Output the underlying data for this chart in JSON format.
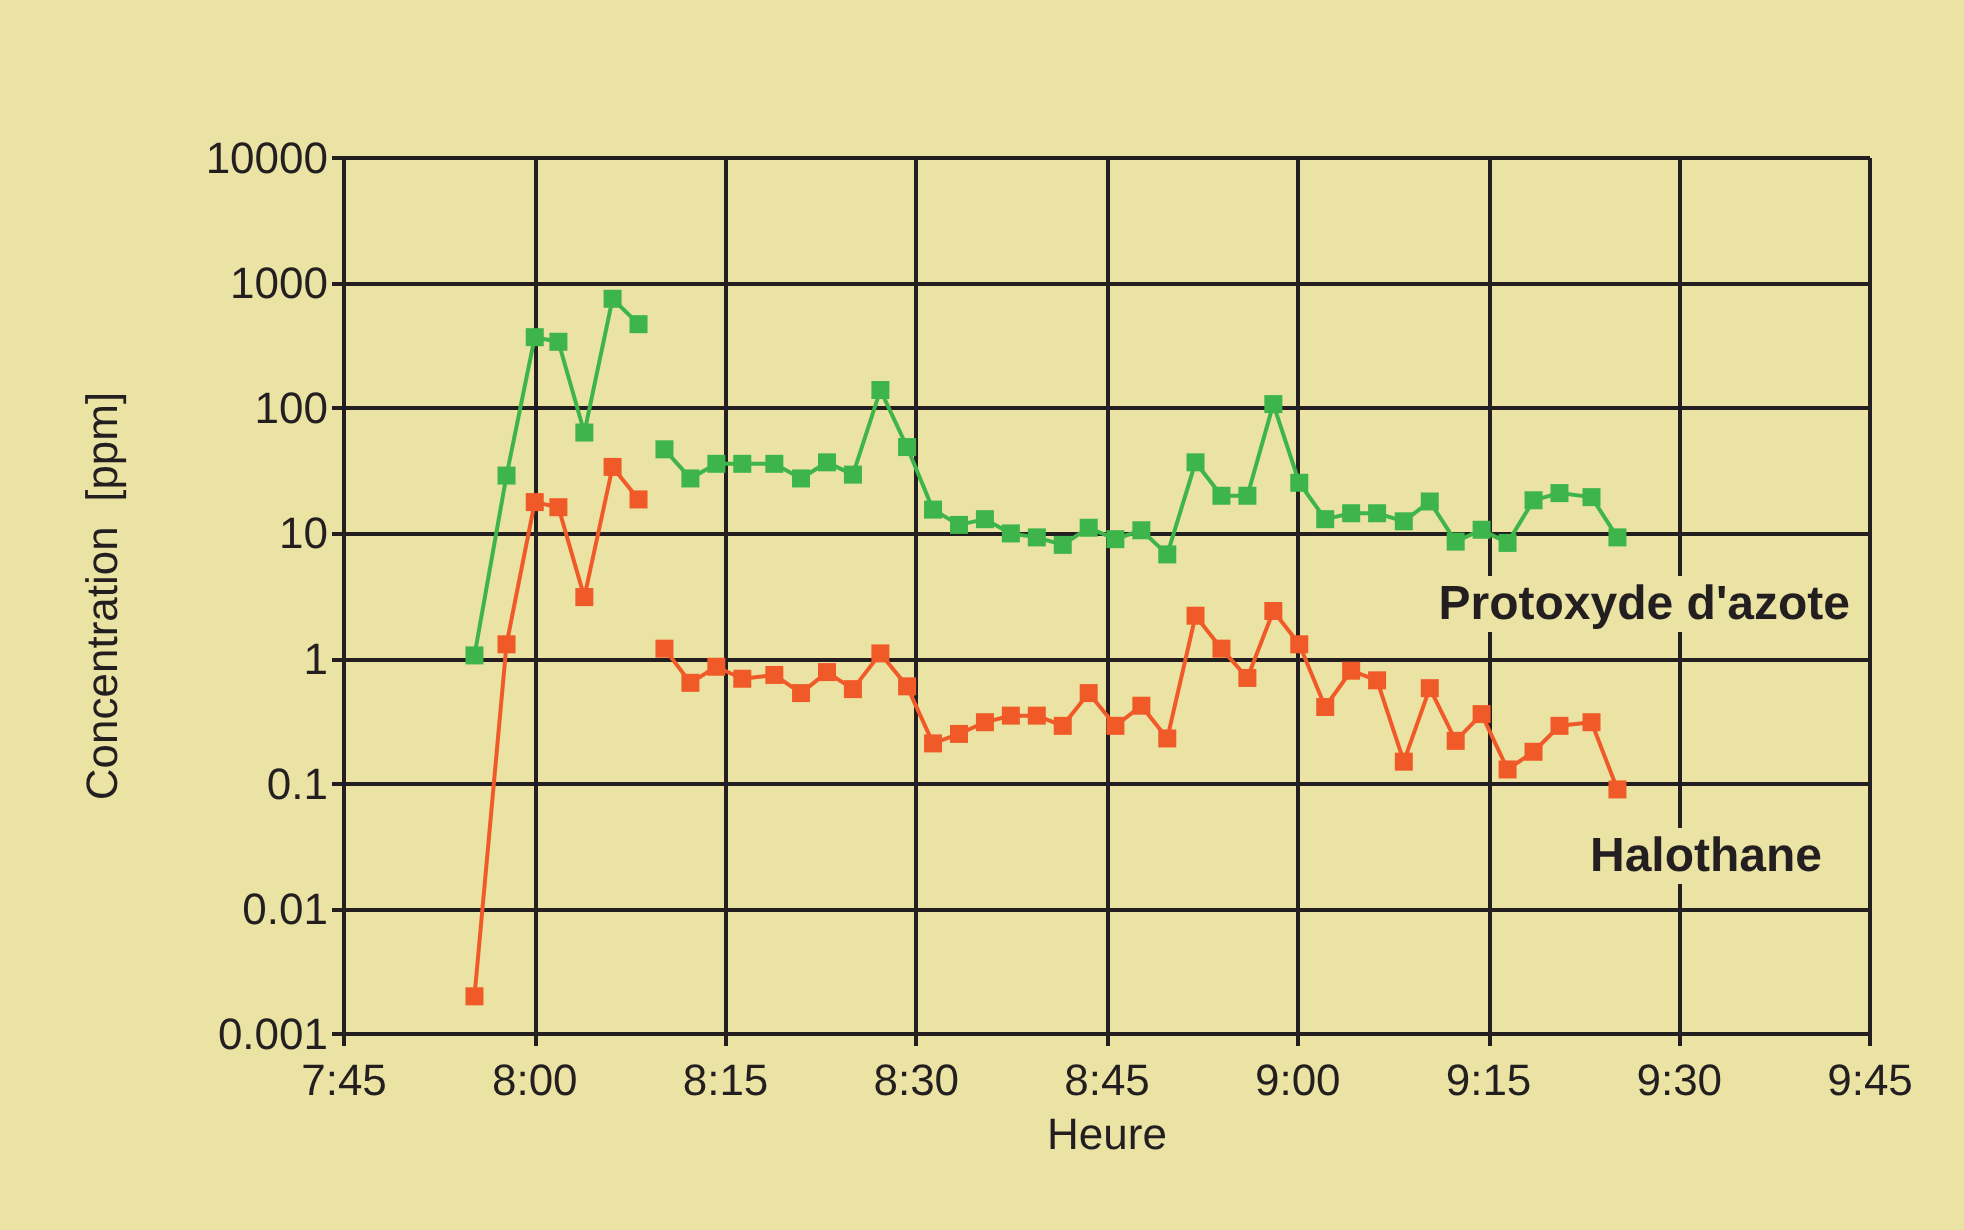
{
  "chart_data": {
    "type": "line",
    "xlabel": "Heure",
    "ylabel": "Concentration  [ppm]",
    "x": [
      7.921,
      7.963,
      8.0,
      8.031,
      8.065,
      8.102,
      8.136,
      8.153,
      8.17,
      8.204,
      8.238,
      8.272,
      8.314,
      8.349,
      8.383,
      8.417,
      8.453,
      8.488,
      8.522,
      8.556,
      8.59,
      8.624,
      8.658,
      8.692,
      8.726,
      8.761,
      8.795,
      8.829,
      8.866,
      8.9,
      8.934,
      8.968,
      9.002,
      9.036,
      9.07,
      9.104,
      9.139,
      9.173,
      9.207,
      9.241,
      9.275,
      9.309,
      9.343,
      9.385,
      9.419
    ],
    "series": [
      {
        "name": "Protoxyde d'azote",
        "color": "#3db54a",
        "values": [
          1.06,
          29,
          370,
          340,
          64,
          750,
          470,
          null,
          47,
          27.5,
          36,
          36,
          36,
          27.5,
          37,
          29.5,
          140,
          49,
          15.5,
          11.7,
          13,
          10,
          9.3,
          8.1,
          11.1,
          9,
          10.6,
          6.8,
          37,
          20,
          20,
          108,
          25.4,
          13,
          14.5,
          14.5,
          12.5,
          18,
          8.6,
          10.7,
          8.4,
          18.4,
          21,
          19.5,
          9.3
        ]
      },
      {
        "name": "Halothane",
        "color": "#f05a28",
        "values": [
          0.002,
          1.3,
          17.8,
          16.2,
          3.1,
          34,
          18.7,
          null,
          1.2,
          0.64,
          0.86,
          0.69,
          0.74,
          0.53,
          0.78,
          0.57,
          1.1,
          0.6,
          0.21,
          0.25,
          0.31,
          0.35,
          0.35,
          0.29,
          0.53,
          0.29,
          0.42,
          0.23,
          2.2,
          1.2,
          0.7,
          2.4,
          1.3,
          0.41,
          0.8,
          0.67,
          0.15,
          0.58,
          0.22,
          0.36,
          0.13,
          0.18,
          0.29,
          0.31,
          0.09
        ]
      }
    ],
    "xlim": [
      7.75,
      9.75
    ],
    "xticks": [
      {
        "value": 7.75,
        "label": "7:45"
      },
      {
        "value": 8,
        "label": "8:00"
      },
      {
        "value": 8.25,
        "label": "8:15"
      },
      {
        "value": 8.5,
        "label": "8:30"
      },
      {
        "value": 8.75,
        "label": "8:45"
      },
      {
        "value": 9,
        "label": "9:00"
      },
      {
        "value": 9.25,
        "label": "9:15"
      },
      {
        "value": 9.5,
        "label": "9:30"
      },
      {
        "value": 9.75,
        "label": "9:45"
      }
    ],
    "ylim": [
      0.001,
      10000
    ],
    "yticks": [
      0.001,
      0.01,
      0.1,
      1,
      10,
      100,
      1000,
      10000
    ],
    "log": "y",
    "grid": true,
    "legend": false,
    "marker": "square",
    "line_style": "solid"
  }
}
